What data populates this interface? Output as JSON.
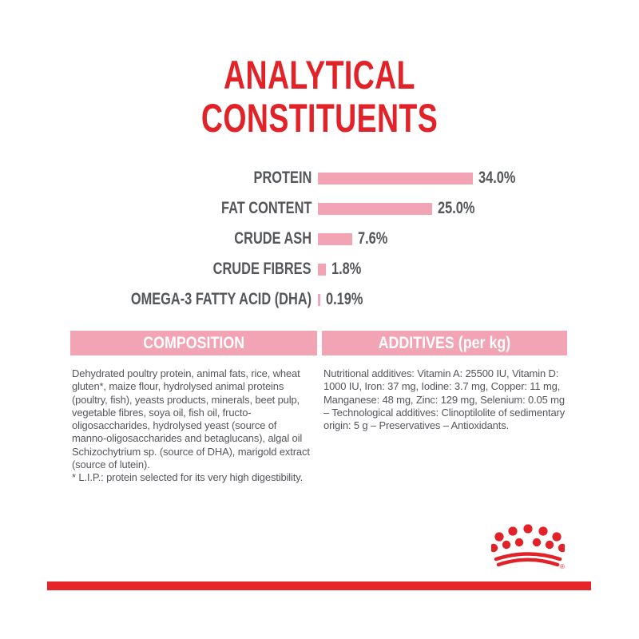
{
  "page": {
    "title_line1": "ANALYTICAL",
    "title_line2": "CONSTITUENTS"
  },
  "chart_data": {
    "type": "bar",
    "orientation": "horizontal",
    "title": "ANALYTICAL CONSTITUENTS",
    "categories": [
      "PROTEIN",
      "FAT CONTENT",
      "CRUDE ASH",
      "CRUDE FIBRES",
      "OMEGA-3 FATTY ACID (DHA)"
    ],
    "values": [
      34.0,
      25.0,
      7.6,
      1.8,
      0.19
    ],
    "value_labels": [
      "34.0%",
      "25.0%",
      "7.6%",
      "1.8%",
      "0.19%"
    ],
    "unit": "%",
    "axis": "none",
    "grid": false,
    "legend": false,
    "bar_color": "#f2a3b4",
    "label_color": "#54565a"
  },
  "composition": {
    "header": "COMPOSITION",
    "body": "Dehydrated poultry protein, animal fats, rice, wheat gluten*, maize flour, hydrolysed animal proteins (poultry, fish), yeasts products, minerals, beet pulp, vegetable fibres, soya oil, fish oil, fructo-oligosaccharides, hydrolysed yeast (source of manno-oligosaccharides and betaglucans), algal oil Schizochytrium sp. (source of DHA), marigold extract (source of lutein).",
    "footnote": "* L.I.P.: protein selected for its very high digestibility."
  },
  "additives": {
    "header": "ADDITIVES (per kg)",
    "body": "Nutritional additives: Vitamin A: 25500 IU, Vitamin D: 1000 IU, Iron: 37 mg, Iodine: 3.7 mg, Copper: 11 mg, Manganese: 48 mg, Zinc: 129 mg, Selenium: 0.05 mg – Technological additives: Clinoptilolite of sedimentary origin: 5 g – Preservatives – Antioxidants.",
    "registered_mark": "®"
  },
  "branding": {
    "logo": "royal-canin-crown",
    "registered_mark": "®"
  },
  "colors": {
    "red": "#e12329",
    "pink": "#f2a3b4",
    "text_gray": "#54565a",
    "footer_red": "#e6252a"
  }
}
